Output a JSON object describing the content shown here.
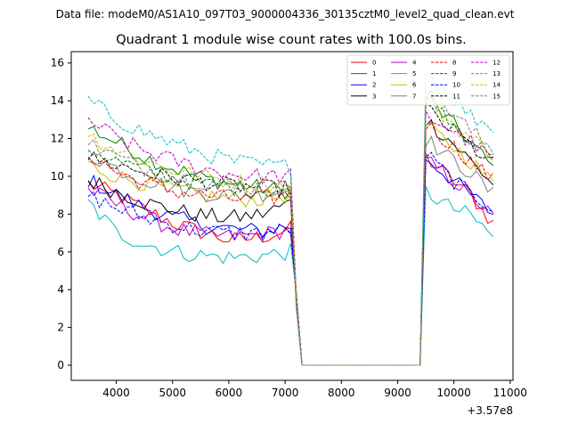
{
  "chart_data": {
    "type": "line",
    "suptitle": "Data file: modeM0/AS1A10_097T03_9000004336_30135cztM0_level2_quad_clean.evt",
    "title": "Quadrant 1 module wise count rates with 100.0s bins.",
    "xlabel": "",
    "ylabel": "",
    "x_offset_label": "+3.57e8",
    "xlim": [
      3200,
      11050
    ],
    "ylim": [
      -0.8,
      16.6
    ],
    "xticks": [
      4000,
      5000,
      6000,
      7000,
      8000,
      9000,
      10000,
      11000
    ],
    "xtick_labels": [
      "4000",
      "5000",
      "6000",
      "7000",
      "8000",
      "9000",
      "10000",
      "11000"
    ],
    "yticks": [
      0,
      2,
      4,
      6,
      8,
      10,
      12,
      14,
      16
    ],
    "ytick_labels": [
      "0",
      "2",
      "4",
      "6",
      "8",
      "10",
      "12",
      "14",
      "16"
    ],
    "legend_position": "top-right",
    "legend_columns": 4,
    "segments": [
      {
        "x0": 3500,
        "x1": 7100
      },
      {
        "x0": 9500,
        "x1": 10700
      }
    ],
    "gap_level": 0.0,
    "series": [
      {
        "name": "0",
        "color": "#ff0000",
        "dash": "solid",
        "seg1": [
          9.6,
          9.0,
          8.2,
          7.5,
          7.0,
          6.6,
          6.8,
          7.2
        ],
        "seg2": [
          11.0,
          10.0,
          9.0,
          7.5
        ]
      },
      {
        "name": "1",
        "color": "#008000",
        "dash": "solid",
        "seg1": [
          12.6,
          11.8,
          11.0,
          10.4,
          9.9,
          9.6,
          9.4,
          9.2
        ],
        "seg2": [
          14.2,
          13.0,
          11.8,
          10.4
        ]
      },
      {
        "name": "2",
        "color": "#0000ff",
        "dash": "solid",
        "seg1": [
          9.8,
          9.0,
          8.3,
          7.8,
          7.4,
          7.2,
          7.1,
          7.4
        ],
        "seg2": [
          11.0,
          10.0,
          9.0,
          8.0
        ]
      },
      {
        "name": "3",
        "color": "#000000",
        "dash": "solid",
        "seg1": [
          9.8,
          9.2,
          8.6,
          8.2,
          7.9,
          7.8,
          8.0,
          8.6
        ],
        "seg2": [
          13.0,
          12.0,
          10.8,
          9.6
        ]
      },
      {
        "name": "4",
        "color": "#bf00bf",
        "dash": "solid",
        "seg1": [
          9.3,
          8.5,
          7.8,
          7.2,
          6.9,
          6.8,
          6.9,
          7.2
        ],
        "seg2": [
          10.8,
          10.0,
          9.0,
          7.8
        ]
      },
      {
        "name": "5",
        "color": "#00bfbf",
        "dash": "solid",
        "seg1": [
          8.6,
          7.0,
          6.4,
          6.0,
          5.8,
          5.7,
          5.8,
          6.0
        ],
        "seg2": [
          9.2,
          8.4,
          7.9,
          6.8
        ]
      },
      {
        "name": "6",
        "color": "#bfbf00",
        "dash": "solid",
        "seg1": [
          10.6,
          10.0,
          9.6,
          9.3,
          9.0,
          8.8,
          8.8,
          9.0
        ],
        "seg2": [
          12.6,
          11.8,
          10.8,
          9.6
        ]
      },
      {
        "name": "7",
        "color": "#808080",
        "dash": "solid",
        "seg1": [
          11.2,
          10.4,
          9.8,
          9.4,
          9.1,
          9.0,
          9.1,
          9.3
        ],
        "seg2": [
          12.0,
          11.0,
          10.2,
          9.0
        ]
      },
      {
        "name": "8",
        "color": "#ff0000",
        "dash": "dashed",
        "seg1": [
          11.2,
          10.2,
          9.6,
          9.2,
          9.0,
          8.8,
          8.8,
          9.0
        ],
        "seg2": [
          12.8,
          11.8,
          10.8,
          9.8
        ]
      },
      {
        "name": "9",
        "color": "#008000",
        "dash": "dashed",
        "seg1": [
          11.5,
          10.8,
          10.3,
          9.9,
          9.6,
          9.4,
          9.3,
          9.2
        ],
        "seg2": [
          14.6,
          13.2,
          12.0,
          10.8
        ]
      },
      {
        "name": "10",
        "color": "#0000ff",
        "dash": "dashed",
        "seg1": [
          9.0,
          8.3,
          7.8,
          7.4,
          7.1,
          7.0,
          7.0,
          7.2
        ],
        "seg2": [
          11.2,
          10.0,
          9.0,
          8.4
        ]
      },
      {
        "name": "11",
        "color": "#000000",
        "dash": "dashed",
        "seg1": [
          11.0,
          10.6,
          10.2,
          9.9,
          9.7,
          9.5,
          9.4,
          9.3
        ],
        "seg2": [
          13.6,
          12.6,
          11.6,
          10.6
        ]
      },
      {
        "name": "12",
        "color": "#bf00bf",
        "dash": "dashed",
        "seg1": [
          13.0,
          12.0,
          11.3,
          10.8,
          10.4,
          10.1,
          10.0,
          10.0
        ],
        "seg2": [
          13.2,
          12.6,
          11.8,
          10.8
        ]
      },
      {
        "name": "13",
        "color": "#00bfbf",
        "dash": "dashed",
        "seg1": [
          14.0,
          13.0,
          12.3,
          11.7,
          11.2,
          10.8,
          10.6,
          10.5
        ],
        "seg2": [
          15.6,
          14.4,
          13.2,
          12.6
        ]
      },
      {
        "name": "14",
        "color": "#bfbf00",
        "dash": "dashed",
        "seg1": [
          12.2,
          11.4,
          10.8,
          10.3,
          10.0,
          9.7,
          9.6,
          9.6
        ],
        "seg2": [
          14.0,
          13.0,
          12.0,
          11.2
        ]
      },
      {
        "name": "15",
        "color": "#808080",
        "dash": "dashed",
        "seg1": [
          11.8,
          11.0,
          10.4,
          10.0,
          9.7,
          9.5,
          9.4,
          9.4
        ],
        "seg2": [
          15.0,
          13.6,
          12.4,
          11.4
        ]
      }
    ]
  }
}
